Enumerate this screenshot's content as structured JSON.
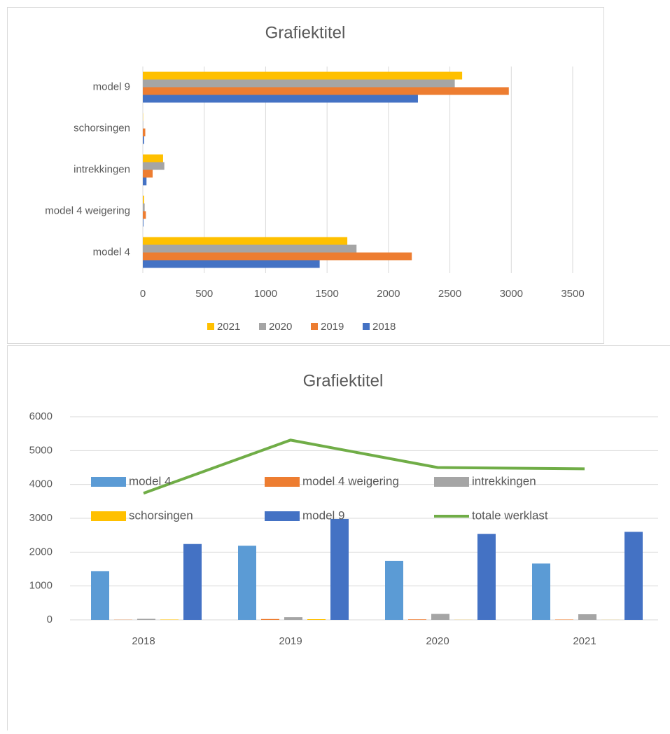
{
  "chart_data": [
    {
      "type": "hbar",
      "title": "Grafiektitel",
      "categories": [
        "model 4",
        "model 4 weigering",
        "intrekkingen",
        "schorsingen",
        "model 9"
      ],
      "series": [
        {
          "name": "2021",
          "color": "#ffc000",
          "values": [
            1665,
            10,
            165,
            2,
            2600
          ]
        },
        {
          "name": "2020",
          "color": "#a5a5a5",
          "values": [
            1740,
            15,
            175,
            3,
            2540
          ]
        },
        {
          "name": "2019",
          "color": "#ed7d31",
          "values": [
            2190,
            25,
            80,
            20,
            2980
          ]
        },
        {
          "name": "2018",
          "color": "#4472c4",
          "values": [
            1440,
            5,
            30,
            10,
            2240
          ]
        }
      ],
      "xlim": [
        0,
        3500
      ],
      "xticks": [
        0,
        500,
        1000,
        1500,
        2000,
        2500,
        3000,
        3500
      ],
      "grid": true,
      "legend": "bottom"
    },
    {
      "type": "combo",
      "title": "Grafiektitel",
      "categories": [
        "2018",
        "2019",
        "2020",
        "2021"
      ],
      "series": [
        {
          "name": "model 4",
          "color": "#5b9bd5",
          "type": "bar",
          "values": [
            1440,
            2190,
            1740,
            1665
          ]
        },
        {
          "name": "model 4 weigering",
          "color": "#ed7d31",
          "type": "bar",
          "values": [
            5,
            25,
            15,
            10
          ]
        },
        {
          "name": "intrekkingen",
          "color": "#a5a5a5",
          "type": "bar",
          "values": [
            30,
            80,
            175,
            165
          ]
        },
        {
          "name": "schorsingen",
          "color": "#ffc000",
          "type": "bar",
          "values": [
            10,
            20,
            3,
            2
          ]
        },
        {
          "name": "model 9",
          "color": "#4472c4",
          "type": "bar",
          "values": [
            2240,
            2980,
            2540,
            2600
          ]
        },
        {
          "name": "totale werklast",
          "color": "#70ad47",
          "type": "line",
          "values": [
            3740,
            5310,
            4500,
            4460
          ]
        }
      ],
      "ylim": [
        0,
        6000
      ],
      "yticks": [
        0,
        1000,
        2000,
        3000,
        4000,
        5000,
        6000
      ],
      "grid": true,
      "legend": "bottom"
    }
  ]
}
